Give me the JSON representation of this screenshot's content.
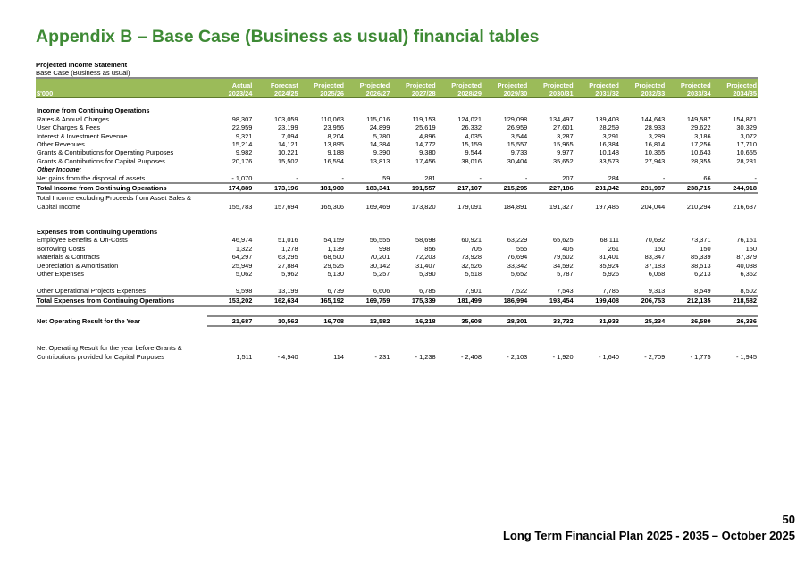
{
  "title": "Appendix B – Base Case (Business as usual) financial tables",
  "statement_title": "Projected Income Statement",
  "statement_subtitle": "Base Case (Business as usual)",
  "table": {
    "unit_label": "$'000",
    "columns": [
      {
        "type": "Actual",
        "year": "2023/24"
      },
      {
        "type": "Forecast",
        "year": "2024/25"
      },
      {
        "type": "Projected",
        "year": "2025/26"
      },
      {
        "type": "Projected",
        "year": "2026/27"
      },
      {
        "type": "Projected",
        "year": "2027/28"
      },
      {
        "type": "Projected",
        "year": "2028/29"
      },
      {
        "type": "Projected",
        "year": "2029/30"
      },
      {
        "type": "Projected",
        "year": "2030/31"
      },
      {
        "type": "Projected",
        "year": "2031/32"
      },
      {
        "type": "Projected",
        "year": "2032/33"
      },
      {
        "type": "Projected",
        "year": "2033/34"
      },
      {
        "type": "Projected",
        "year": "2034/35"
      }
    ],
    "rows": [
      {
        "kind": "spacer"
      },
      {
        "kind": "section",
        "label": "Income from Continuing Operations"
      },
      {
        "kind": "normal",
        "label": "Rates & Annual Charges",
        "values": [
          "98,307",
          "103,059",
          "110,063",
          "115,016",
          "119,153",
          "124,021",
          "129,098",
          "134,497",
          "139,403",
          "144,643",
          "149,587",
          "154,871"
        ]
      },
      {
        "kind": "normal",
        "label": "User Charges & Fees",
        "values": [
          "22,959",
          "23,199",
          "23,956",
          "24,899",
          "25,619",
          "26,332",
          "26,959",
          "27,601",
          "28,259",
          "28,933",
          "29,622",
          "30,329"
        ]
      },
      {
        "kind": "normal",
        "label": "Interest & Investment Revenue",
        "values": [
          "9,321",
          "7,094",
          "8,204",
          "5,780",
          "4,896",
          "4,035",
          "3,544",
          "3,287",
          "3,291",
          "3,289",
          "3,186",
          "3,072"
        ]
      },
      {
        "kind": "normal",
        "label": "Other Revenues",
        "values": [
          "15,214",
          "14,121",
          "13,895",
          "14,384",
          "14,772",
          "15,159",
          "15,557",
          "15,965",
          "16,384",
          "16,814",
          "17,256",
          "17,710"
        ]
      },
      {
        "kind": "normal",
        "label": "Grants & Contributions for Operating Purposes",
        "values": [
          "9,982",
          "10,221",
          "9,188",
          "9,390",
          "9,380",
          "9,544",
          "9,733",
          "9,977",
          "10,148",
          "10,365",
          "10,643",
          "10,655"
        ]
      },
      {
        "kind": "normal",
        "label": "Grants & Contributions for Capital Purposes",
        "values": [
          "20,176",
          "15,502",
          "16,594",
          "13,813",
          "17,456",
          "38,016",
          "30,404",
          "35,652",
          "33,573",
          "27,943",
          "28,355",
          "28,281"
        ]
      },
      {
        "kind": "italic",
        "label": "Other Income:"
      },
      {
        "kind": "normal",
        "label": "Net gains from the disposal of assets",
        "values": [
          "- 1,070",
          "-",
          "-",
          "59",
          "281",
          "-",
          "-",
          "207",
          "284",
          "-",
          "66",
          "-"
        ]
      },
      {
        "kind": "total",
        "label": "Total Income from Continuing Operations",
        "values": [
          "174,889",
          "173,196",
          "181,900",
          "183,341",
          "191,557",
          "217,107",
          "215,295",
          "227,186",
          "231,342",
          "231,987",
          "238,715",
          "244,918"
        ]
      },
      {
        "kind": "normal",
        "label": "Total Income excluding Proceeds from Asset Sales &"
      },
      {
        "kind": "normal",
        "label": "Capital Income",
        "values": [
          "155,783",
          "157,694",
          "165,306",
          "169,469",
          "173,820",
          "179,091",
          "184,891",
          "191,327",
          "197,485",
          "204,044",
          "210,294",
          "216,637"
        ]
      },
      {
        "kind": "spacer"
      },
      {
        "kind": "spacer"
      },
      {
        "kind": "section",
        "label": "Expenses from Continuing Operations"
      },
      {
        "kind": "normal",
        "label": "Employee Benefits & On-Costs",
        "values": [
          "46,974",
          "51,016",
          "54,159",
          "56,555",
          "58,698",
          "60,921",
          "63,229",
          "65,625",
          "68,111",
          "70,692",
          "73,371",
          "76,151"
        ]
      },
      {
        "kind": "normal",
        "label": "Borrowing Costs",
        "values": [
          "1,322",
          "1,278",
          "1,139",
          "998",
          "856",
          "705",
          "555",
          "405",
          "261",
          "150",
          "150",
          "150"
        ]
      },
      {
        "kind": "normal",
        "label": "Materials & Contracts",
        "values": [
          "64,297",
          "63,295",
          "68,500",
          "70,201",
          "72,203",
          "73,928",
          "76,694",
          "79,502",
          "81,401",
          "83,347",
          "85,339",
          "87,379"
        ]
      },
      {
        "kind": "normal",
        "label": "Depreciation & Amortisation",
        "values": [
          "25,949",
          "27,884",
          "29,525",
          "30,142",
          "31,407",
          "32,526",
          "33,342",
          "34,592",
          "35,924",
          "37,183",
          "38,513",
          "40,038"
        ]
      },
      {
        "kind": "normal",
        "label": "Other Expenses",
        "values": [
          "5,062",
          "5,962",
          "5,130",
          "5,257",
          "5,390",
          "5,518",
          "5,652",
          "5,787",
          "5,926",
          "6,068",
          "6,213",
          "6,362"
        ]
      },
      {
        "kind": "spacer"
      },
      {
        "kind": "under",
        "label": "Other Operational Projects Expenses",
        "values": [
          "9,598",
          "13,199",
          "6,739",
          "6,606",
          "6,785",
          "7,901",
          "7,522",
          "7,543",
          "7,785",
          "9,313",
          "8,549",
          "8,502"
        ]
      },
      {
        "kind": "total",
        "label": "Total Expenses from Continuing Operations",
        "values": [
          "153,202",
          "162,634",
          "165,192",
          "169,759",
          "175,339",
          "181,499",
          "186,994",
          "193,454",
          "199,408",
          "206,753",
          "212,135",
          "218,582"
        ]
      },
      {
        "kind": "spacer"
      },
      {
        "kind": "net",
        "label": "Net Operating Result for the Year",
        "values": [
          "21,687",
          "10,562",
          "16,708",
          "13,582",
          "16,218",
          "35,608",
          "28,301",
          "33,732",
          "31,933",
          "25,234",
          "26,580",
          "26,336"
        ]
      },
      {
        "kind": "spacer"
      },
      {
        "kind": "spacer"
      },
      {
        "kind": "normal",
        "label": "Net Operating Result for the year before Grants &"
      },
      {
        "kind": "normal",
        "label": "Contributions provided for Capital Purposes",
        "values": [
          "1,511",
          "- 4,940",
          "114",
          "- 231",
          "- 1,238",
          "- 2,408",
          "- 2,103",
          "- 1,920",
          "- 1,640",
          "- 2,709",
          "- 1,775",
          "- 1,945"
        ]
      }
    ]
  },
  "footer": {
    "page_number": "50",
    "document_title": "Long Term Financial Plan 2025 - 2035 – October 2025"
  },
  "colors": {
    "title": "#3e8a35",
    "header_bg": "#9bbb59",
    "header_text": "#ffffff"
  }
}
